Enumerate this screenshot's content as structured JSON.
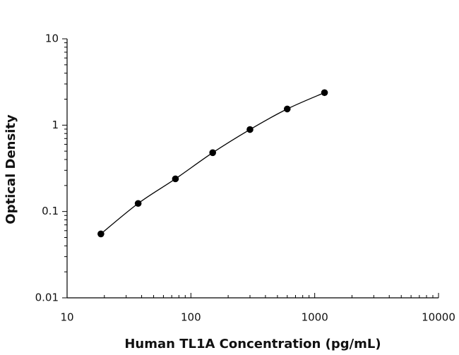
{
  "chart_data": {
    "type": "scatter",
    "xlabel": "Human TL1A Concentration (pg/mL)",
    "ylabel": "Optical Density",
    "x": [
      18.75,
      37.5,
      75,
      150,
      300,
      600,
      1200
    ],
    "values": [
      0.055,
      0.124,
      0.239,
      0.48,
      0.89,
      1.54,
      2.38
    ],
    "color": "#000000",
    "log_x": true,
    "log_y": true,
    "minor_ticks": true,
    "fit_curve": true,
    "xlim": [
      10,
      10000
    ],
    "xticks": [
      10,
      100,
      1000,
      10000
    ],
    "ylim": [
      0.01,
      10
    ],
    "yticks": [
      0.01,
      0.1,
      1,
      10
    ]
  }
}
